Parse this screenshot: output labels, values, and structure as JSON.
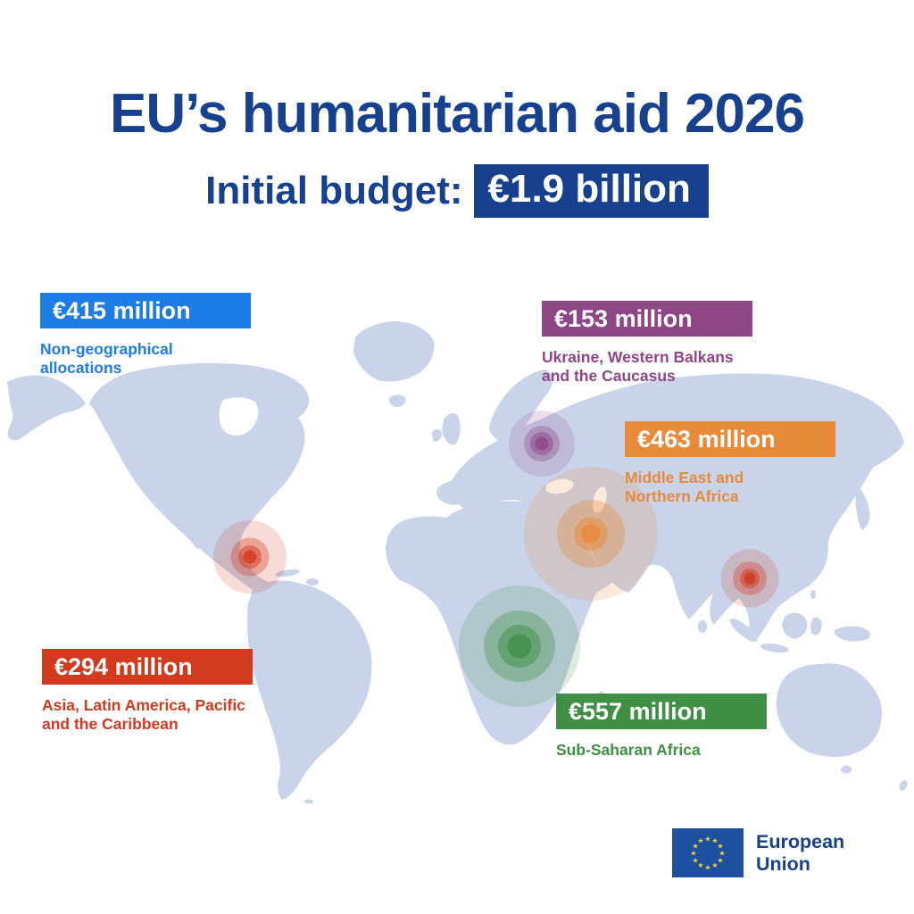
{
  "title": "EU’s humanitarian aid 2026",
  "subtitle": {
    "label": "Initial budget:",
    "value": "€1.9 billion"
  },
  "regions": [
    {
      "id": "non-geographical",
      "amount": "€415 million",
      "description": "Non-geographical allocations",
      "color": "#1d7ce5"
    },
    {
      "id": "ukraine-western-balkans-caucasus",
      "amount": "€153 million",
      "description": "Ukraine, Western Balkans and the Caucasus",
      "color": "#8e4687"
    },
    {
      "id": "middle-east-northern-africa",
      "amount": "€463 million",
      "description": "Middle East and Northern Africa",
      "color": "#e78a3a"
    },
    {
      "id": "asia-latam-pacific-caribbean",
      "amount": "€294 million",
      "description": "Asia, Latin America, Pacific and the Caribbean",
      "color": "#d23a1e"
    },
    {
      "id": "sub-saharan-africa",
      "amount": "€557 million",
      "description": "Sub-Saharan Africa",
      "color": "#3f8f45"
    }
  ],
  "footer": {
    "organization": "European Union"
  },
  "colors": {
    "brand_blue": "#17418f",
    "map_land": "#c9d3e9",
    "flag_blue": "#1e50a0",
    "flag_star_yellow": "#f0d43a"
  },
  "chart_data": {
    "type": "table",
    "title": "EU’s humanitarian aid 2026",
    "subtitle": "Initial budget: €1.9 billion",
    "categories": [
      "Non-geographical allocations",
      "Ukraine, Western Balkans and the Caucasus",
      "Middle East and Northern Africa",
      "Asia, Latin America, Pacific and the Caribbean",
      "Sub-Saharan Africa"
    ],
    "values": [
      415,
      153,
      463,
      294,
      557
    ],
    "units": "€ million",
    "total": "€1.9 billion",
    "legend_position": "on-map"
  }
}
